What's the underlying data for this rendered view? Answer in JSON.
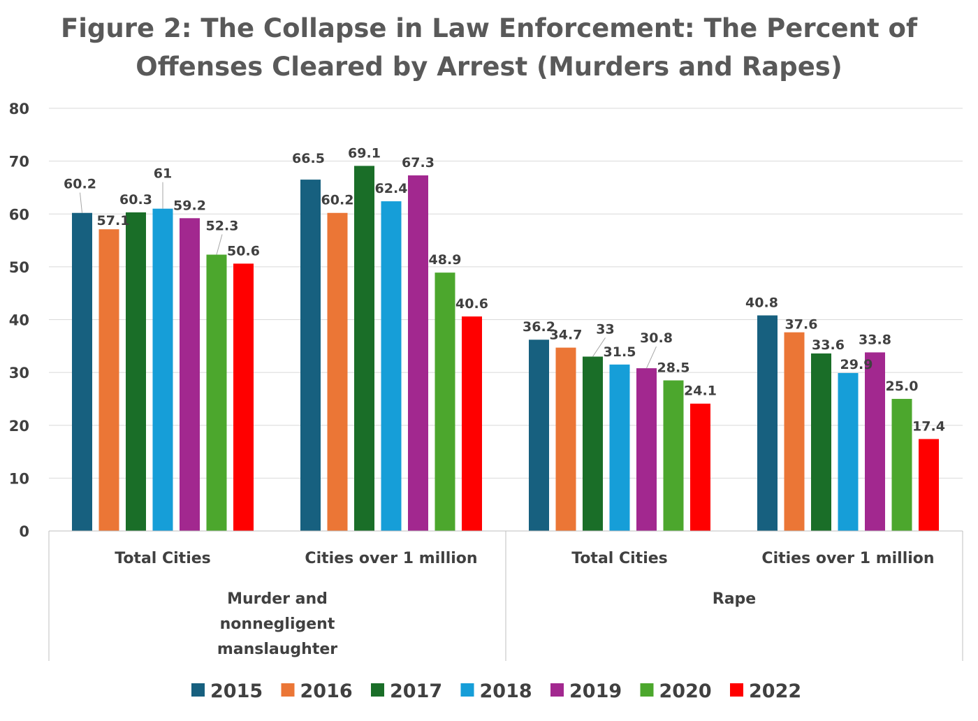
{
  "chart_data": {
    "type": "bar",
    "title_lines": [
      "Figure 2: The Collapse in Law Enforcement: The Percent of",
      "Offenses Cleared by Arrest (Murders and Rapes)"
    ],
    "ylim": [
      0,
      80
    ],
    "yticks": [
      0,
      10,
      20,
      30,
      40,
      50,
      60,
      70,
      80
    ],
    "grid": true,
    "legend_position": "bottom",
    "groups": [
      {
        "label_lines": [
          "Murder and",
          "nonnegligent",
          "manslaughter"
        ],
        "categories": [
          "Total Cities",
          "Cities over 1 million"
        ]
      },
      {
        "label_lines": [
          "Rape"
        ],
        "categories": [
          "Total Cities",
          "Cities over 1 million"
        ]
      }
    ],
    "series": [
      {
        "name": "2015",
        "color": "#17607f",
        "values": [
          60.2,
          66.5,
          36.2,
          40.8
        ],
        "labels": [
          "60.2",
          "66.5",
          "36.2",
          "40.8"
        ]
      },
      {
        "name": "2016",
        "color": "#eb7636",
        "values": [
          57.1,
          60.2,
          34.7,
          37.6
        ],
        "labels": [
          "57.1",
          "60.2",
          "34.7",
          "37.6"
        ]
      },
      {
        "name": "2017",
        "color": "#1a6e28",
        "values": [
          60.3,
          69.1,
          33,
          33.6
        ],
        "labels": [
          "60.3",
          "69.1",
          "33",
          "33.6"
        ]
      },
      {
        "name": "2018",
        "color": "#169ed8",
        "values": [
          61,
          62.4,
          31.5,
          29.9
        ],
        "labels": [
          "61",
          "62.4",
          "31.5",
          "29.9"
        ]
      },
      {
        "name": "2019",
        "color": "#a2288f",
        "values": [
          59.2,
          67.3,
          30.8,
          33.8
        ],
        "labels": [
          "59.2",
          "67.3",
          "30.8",
          "33.8"
        ]
      },
      {
        "name": "2020",
        "color": "#4ca72d",
        "values": [
          52.3,
          48.9,
          28.5,
          25.0
        ],
        "labels": [
          "52.3",
          "48.9",
          "28.5",
          "25.0"
        ]
      },
      {
        "name": "2022",
        "color": "#ff0000",
        "values": [
          50.6,
          40.6,
          24.1,
          17.4
        ],
        "labels": [
          "50.6",
          "40.6",
          "24.1",
          "17.4"
        ]
      }
    ]
  }
}
